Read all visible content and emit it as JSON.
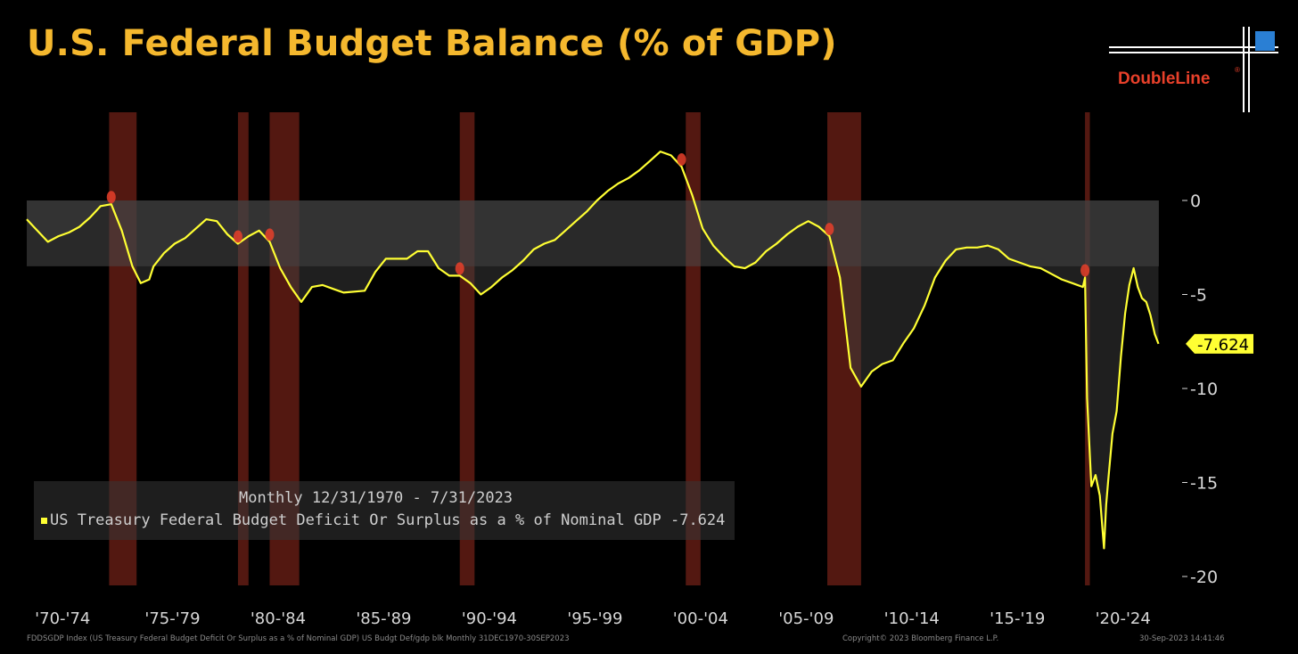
{
  "title": "U.S. Federal Budget Balance (% of GDP)",
  "logo": {
    "brand": "DoubleLine",
    "mark": "®"
  },
  "legend": {
    "period": "Monthly 12/31/1970 - 7/31/2023",
    "entry": "US Treasury Federal Budget Deficit Or Surplus as a % of Nominal GDP -7.624"
  },
  "footer": {
    "left": "FDDSGDP Index (US Treasury Federal Budget Deficit Or Surplus as a % of Nominal GDP) US Budgt Def/gdp blk Monthly 31DEC1970-30SEP2023",
    "middle": "Copyright© 2023 Bloomberg Finance L.P.",
    "right": "30-Sep-2023 14:41:46"
  },
  "colors": {
    "background": "#000000",
    "title": "#f5b82e",
    "line": "#ffff33",
    "recession": "#5a1a12",
    "deficit_shade": "#4a4a4a",
    "logo_brand": "#e8402a",
    "logo_square": "#2a7fd4"
  },
  "chart_data": {
    "type": "line",
    "title": "U.S. Federal Budget Balance (% of GDP)",
    "xlabel": "",
    "ylabel": "",
    "x_range": [
      1970.0,
      2023.6
    ],
    "ylim": [
      -21,
      6
    ],
    "yticks": [
      0,
      -5,
      -10,
      -15,
      -20
    ],
    "x_tick_labels": [
      "'70-'74",
      "'75-'79",
      "'80-'84",
      "'85-'89",
      "'90-'94",
      "'95-'99",
      "'00-'04",
      "'05-'09",
      "'10-'14",
      "'15-'19",
      "'20-'24"
    ],
    "x_tick_positions": [
      1971.7,
      1976.9,
      1981.9,
      1986.9,
      1991.9,
      1996.9,
      2001.9,
      2006.9,
      2011.9,
      2016.9,
      2021.9
    ],
    "last_value_label": "-7.624",
    "grid": false,
    "series": [
      {
        "name": "US Treasury Federal Budget Deficit Or Surplus as a % of Nominal GDP",
        "x": [
          1970.0,
          1970.5,
          1971.0,
          1971.5,
          1972.0,
          1972.5,
          1973.0,
          1973.5,
          1974.0,
          1974.5,
          1975.0,
          1975.4,
          1975.8,
          1976.0,
          1976.5,
          1977.0,
          1977.5,
          1978.0,
          1978.5,
          1979.0,
          1979.5,
          1980.0,
          1980.5,
          1981.0,
          1981.5,
          1982.0,
          1982.5,
          1983.0,
          1983.5,
          1984.0,
          1984.5,
          1985.0,
          1986.0,
          1986.5,
          1987.0,
          1987.5,
          1988.0,
          1988.5,
          1989.0,
          1989.5,
          1990.0,
          1990.5,
          1991.0,
          1991.5,
          1992.0,
          1992.5,
          1993.0,
          1993.5,
          1994.0,
          1994.5,
          1995.0,
          1995.5,
          1996.0,
          1996.5,
          1997.0,
          1997.5,
          1998.0,
          1998.5,
          1999.0,
          1999.5,
          2000.0,
          2000.5,
          2001.0,
          2001.5,
          2002.0,
          2002.5,
          2003.0,
          2003.5,
          2004.0,
          2004.5,
          2005.0,
          2005.5,
          2006.0,
          2006.5,
          2007.0,
          2007.5,
          2008.0,
          2008.5,
          2009.0,
          2009.5,
          2010.0,
          2010.5,
          2011.0,
          2011.5,
          2012.0,
          2012.5,
          2013.0,
          2013.5,
          2014.0,
          2014.5,
          2015.0,
          2015.5,
          2016.0,
          2016.5,
          2017.0,
          2017.5,
          2018.0,
          2018.5,
          2019.0,
          2019.5,
          2020.0,
          2020.1,
          2020.2,
          2020.4,
          2020.6,
          2020.8,
          2021.0,
          2021.1,
          2021.2,
          2021.4,
          2021.6,
          2021.8,
          2022.0,
          2022.2,
          2022.4,
          2022.6,
          2022.8,
          2023.0,
          2023.2,
          2023.4,
          2023.58
        ],
        "values": [
          -1.0,
          -1.6,
          -2.2,
          -1.9,
          -1.7,
          -1.4,
          -0.9,
          -0.3,
          -0.2,
          -1.6,
          -3.5,
          -4.4,
          -4.2,
          -3.5,
          -2.8,
          -2.3,
          -2.0,
          -1.5,
          -1.0,
          -1.1,
          -1.8,
          -2.3,
          -1.9,
          -1.6,
          -2.2,
          -3.6,
          -4.6,
          -5.4,
          -4.6,
          -4.5,
          -4.7,
          -4.9,
          -4.8,
          -3.8,
          -3.1,
          -3.1,
          -3.1,
          -2.7,
          -2.7,
          -3.6,
          -4.0,
          -4.0,
          -4.4,
          -5.0,
          -4.6,
          -4.1,
          -3.7,
          -3.2,
          -2.6,
          -2.3,
          -2.1,
          -1.6,
          -1.1,
          -0.6,
          0.0,
          0.5,
          0.9,
          1.2,
          1.6,
          2.1,
          2.6,
          2.4,
          1.8,
          0.3,
          -1.5,
          -2.4,
          -3.0,
          -3.5,
          -3.6,
          -3.3,
          -2.7,
          -2.3,
          -1.8,
          -1.4,
          -1.1,
          -1.4,
          -1.9,
          -4.1,
          -8.9,
          -9.9,
          -9.1,
          -8.7,
          -8.5,
          -7.6,
          -6.8,
          -5.6,
          -4.1,
          -3.2,
          -2.6,
          -2.5,
          -2.5,
          -2.4,
          -2.6,
          -3.1,
          -3.3,
          -3.5,
          -3.6,
          -3.9,
          -4.2,
          -4.4,
          -4.6,
          -4.1,
          -10.5,
          -15.2,
          -14.6,
          -15.7,
          -18.5,
          -16.2,
          -14.9,
          -12.4,
          -11.2,
          -8.3,
          -6.0,
          -4.5,
          -3.6,
          -4.6,
          -5.2,
          -5.4,
          -6.1,
          -7.1,
          -7.624
        ]
      }
    ],
    "recessions": [
      [
        1973.9,
        1975.2
      ],
      [
        1980.0,
        1980.5
      ],
      [
        1981.5,
        1982.9
      ],
      [
        1990.5,
        1991.2
      ],
      [
        2001.2,
        2001.9
      ],
      [
        2007.9,
        2009.5
      ],
      [
        2020.1,
        2020.33
      ]
    ]
  }
}
